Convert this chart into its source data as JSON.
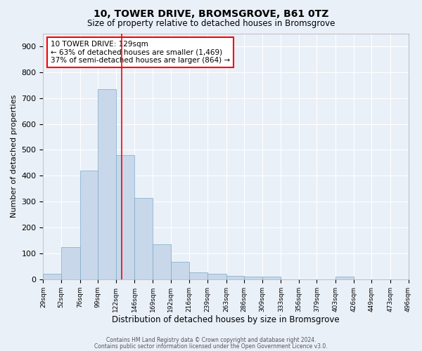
{
  "title1": "10, TOWER DRIVE, BROMSGROVE, B61 0TZ",
  "title2": "Size of property relative to detached houses in Bromsgrove",
  "xlabel": "Distribution of detached houses by size in Bromsgrove",
  "ylabel": "Number of detached properties",
  "bar_edges": [
    29,
    52,
    76,
    99,
    122,
    146,
    169,
    192,
    216,
    239,
    263,
    286,
    309,
    333,
    356,
    379,
    403,
    426,
    449,
    473,
    496
  ],
  "bar_heights": [
    20,
    125,
    420,
    735,
    480,
    315,
    135,
    68,
    28,
    22,
    12,
    10,
    10,
    0,
    0,
    0,
    10,
    0,
    0,
    0
  ],
  "bar_color": "#c8d8ea",
  "bar_edgecolor": "#7aaac8",
  "x_tick_labels": [
    "29sqm",
    "52sqm",
    "76sqm",
    "99sqm",
    "122sqm",
    "146sqm",
    "169sqm",
    "192sqm",
    "216sqm",
    "239sqm",
    "263sqm",
    "286sqm",
    "309sqm",
    "333sqm",
    "356sqm",
    "379sqm",
    "403sqm",
    "426sqm",
    "449sqm",
    "473sqm",
    "496sqm"
  ],
  "red_line_x": 129,
  "annotation_line1": "10 TOWER DRIVE: 129sqm",
  "annotation_line2": "← 63% of detached houses are smaller (1,469)",
  "annotation_line3": "37% of semi-detached houses are larger (864) →",
  "ylim": [
    0,
    950
  ],
  "yticks": [
    0,
    100,
    200,
    300,
    400,
    500,
    600,
    700,
    800,
    900
  ],
  "background_color": "#eaf0f8",
  "fig_background_color": "#eaf0f8",
  "grid_color": "#ffffff",
  "footer1": "Contains HM Land Registry data © Crown copyright and database right 2024.",
  "footer2": "Contains public sector information licensed under the Open Government Licence v3.0."
}
